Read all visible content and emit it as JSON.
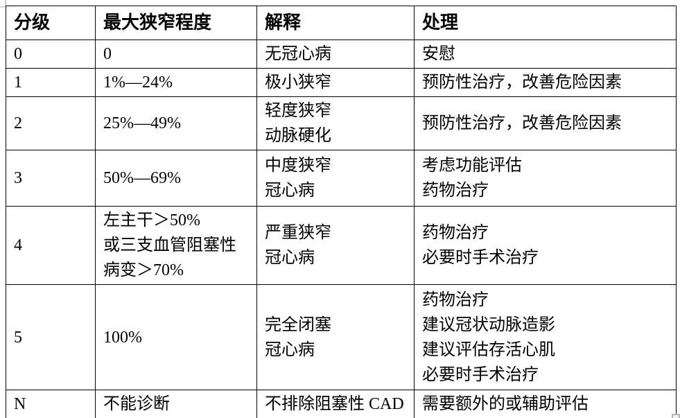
{
  "page": {
    "background_color": "#ffffff",
    "text_color": "#000000",
    "border_color": "#000000"
  },
  "table": {
    "headers": [
      "分级",
      "最大狭窄程度",
      "解释",
      "处理"
    ],
    "rows": [
      {
        "grade": "0",
        "stenosis": [
          "0"
        ],
        "interpretation": [
          "无冠心病"
        ],
        "management": [
          "安慰"
        ]
      },
      {
        "grade": "1",
        "stenosis": [
          "1%—24%"
        ],
        "interpretation": [
          "极小狭窄"
        ],
        "management": [
          "预防性治疗，改善危险因素"
        ]
      },
      {
        "grade": "2",
        "stenosis": [
          "25%—49%"
        ],
        "interpretation": [
          "轻度狭窄",
          "动脉硬化"
        ],
        "management": [
          "预防性治疗，改善危险因素"
        ]
      },
      {
        "grade": "3",
        "stenosis": [
          "50%—69%"
        ],
        "interpretation": [
          "中度狭窄",
          "冠心病"
        ],
        "management": [
          "考虑功能评估",
          "药物治疗"
        ]
      },
      {
        "grade": "4",
        "stenosis": [
          "左主干＞50%",
          "或三支血管阻塞性",
          "病变＞70%"
        ],
        "interpretation": [
          "严重狭窄",
          "冠心病"
        ],
        "management": [
          "药物治疗",
          "必要时手术治疗"
        ]
      },
      {
        "grade": "5",
        "stenosis": [
          "100%"
        ],
        "interpretation": [
          "完全闭塞",
          "冠心病"
        ],
        "management": [
          "药物治疗",
          "建议冠状动脉造影",
          "建议评估存活心肌",
          "必要时手术治疗"
        ]
      },
      {
        "grade": "N",
        "stenosis": [
          "不能诊断"
        ],
        "interpretation": [
          "不排除阻塞性 CAD"
        ],
        "management": [
          "需要额外的或辅助评估"
        ]
      }
    ]
  }
}
